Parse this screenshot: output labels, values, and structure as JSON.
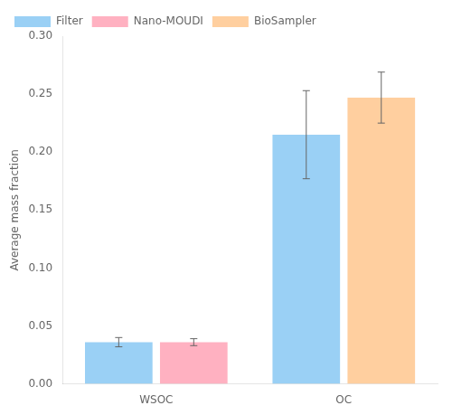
{
  "chart_data": {
    "type": "bar",
    "categories": [
      "WSOC",
      "OC"
    ],
    "series": [
      {
        "name": "Filter",
        "values": [
          0.036,
          0.215
        ],
        "errors": [
          0.004,
          0.038
        ]
      },
      {
        "name": "Nano-MOUDI",
        "values": [
          0.036,
          null
        ],
        "errors": [
          0.003,
          null
        ]
      },
      {
        "name": "BioSampler",
        "values": [
          null,
          0.247
        ],
        "errors": [
          null,
          0.022
        ]
      }
    ],
    "ylabel": "Average mass fraction",
    "ylim": [
      0.0,
      0.3
    ],
    "yticks": [
      {
        "value": 0.0,
        "label": "0.00"
      },
      0.05,
      {
        "value": 0.1,
        "label": "0.10"
      },
      0.15,
      {
        "value": 0.2,
        "label": "0.20"
      },
      0.25,
      {
        "value": 0.3,
        "label": "0.30"
      }
    ],
    "grid": false,
    "legend": "upper left"
  }
}
